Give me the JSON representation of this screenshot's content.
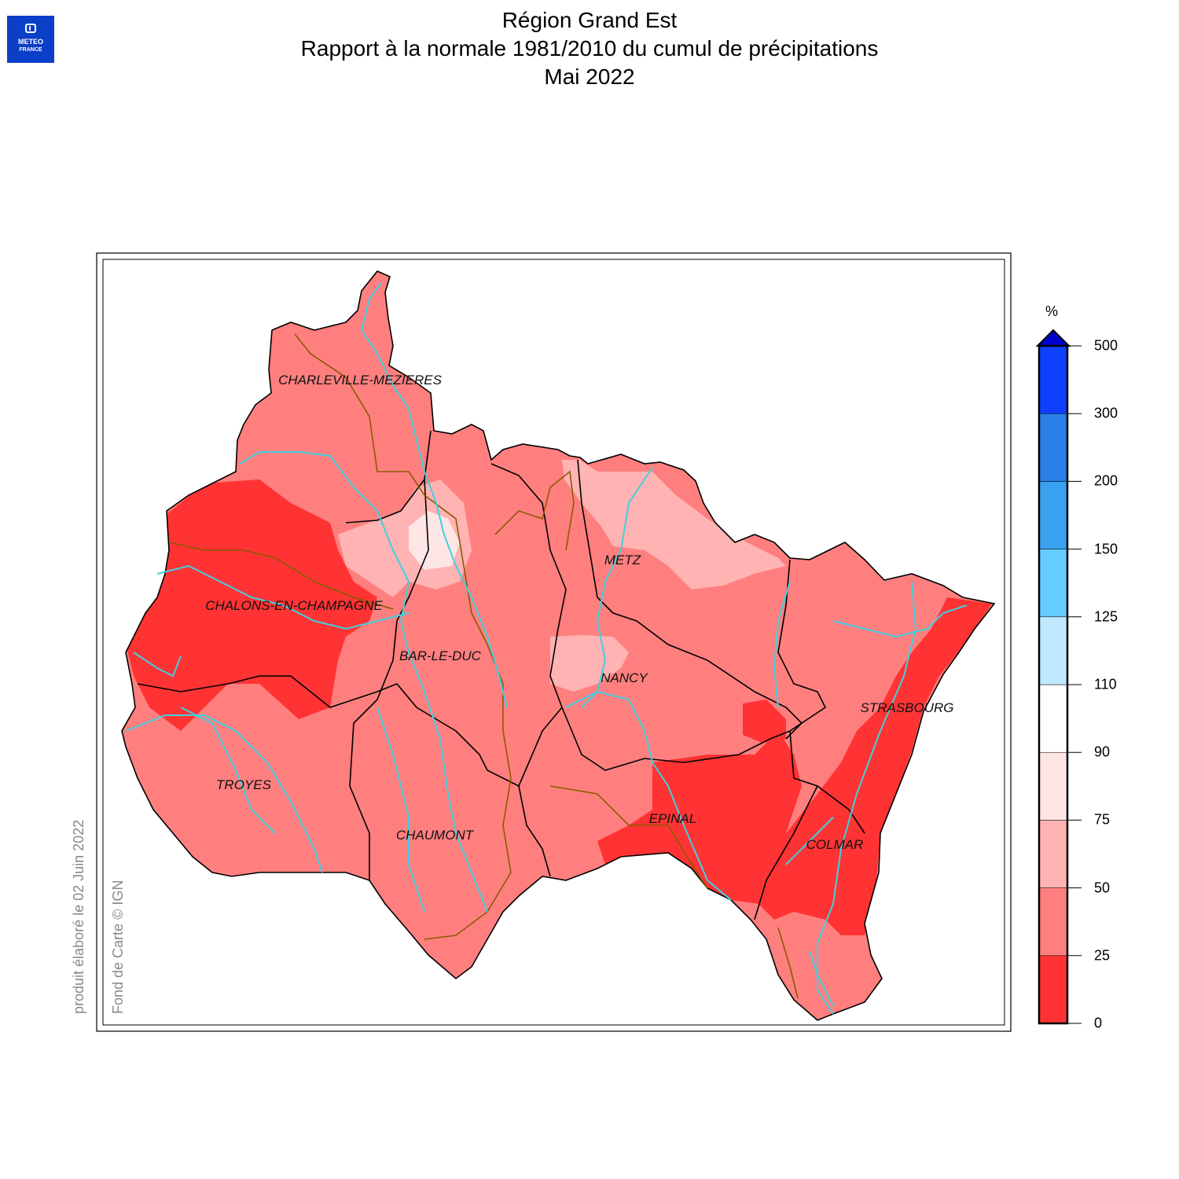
{
  "header": {
    "title_line1": "Région Grand Est",
    "title_line2": "Rapport à la normale 1981/2010 du cumul de précipitations",
    "title_line3": "Mai 2022"
  },
  "logo": {
    "line1": "METEO",
    "line2": "FRANCE"
  },
  "credits": {
    "produced": "produit élaboré le 02 Juin 2022",
    "basemap": "Fond de Carte © IGN"
  },
  "cities": [
    {
      "name": "CHARLEVILLE-MEZIERES"
    },
    {
      "name": "METZ"
    },
    {
      "name": "CHALONS-EN-CHAMPAGNE"
    },
    {
      "name": "BAR-LE-DUC"
    },
    {
      "name": "NANCY"
    },
    {
      "name": "STRASBOURG"
    },
    {
      "name": "TROYES"
    },
    {
      "name": "EPINAL"
    },
    {
      "name": "CHAUMONT"
    },
    {
      "name": "COLMAR"
    }
  ],
  "legend": {
    "unit": "%",
    "ticks": [
      "0",
      "25",
      "50",
      "75",
      "90",
      "110",
      "125",
      "150",
      "200",
      "300",
      "500"
    ],
    "classes": [
      {
        "from": 0,
        "to": 25,
        "color": "#ff3333"
      },
      {
        "from": 25,
        "to": 50,
        "color": "#ff7f7f"
      },
      {
        "from": 50,
        "to": 75,
        "color": "#ffb3b3"
      },
      {
        "from": 75,
        "to": 90,
        "color": "#ffe6e6"
      },
      {
        "from": 90,
        "to": 110,
        "color": "#ffffff"
      },
      {
        "from": 110,
        "to": 125,
        "color": "#c0e8ff"
      },
      {
        "from": 125,
        "to": 150,
        "color": "#66ccff"
      },
      {
        "from": 150,
        "to": 200,
        "color": "#3aa0f0"
      },
      {
        "from": 200,
        "to": 300,
        "color": "#2a80e8"
      },
      {
        "from": 300,
        "to": 500,
        "color": "#1040ff"
      }
    ],
    "overflow_color": "#0000cc"
  },
  "colors": {
    "river": "#40d0e0",
    "basin_border": "#8b5a00",
    "department_border": "#000000"
  }
}
